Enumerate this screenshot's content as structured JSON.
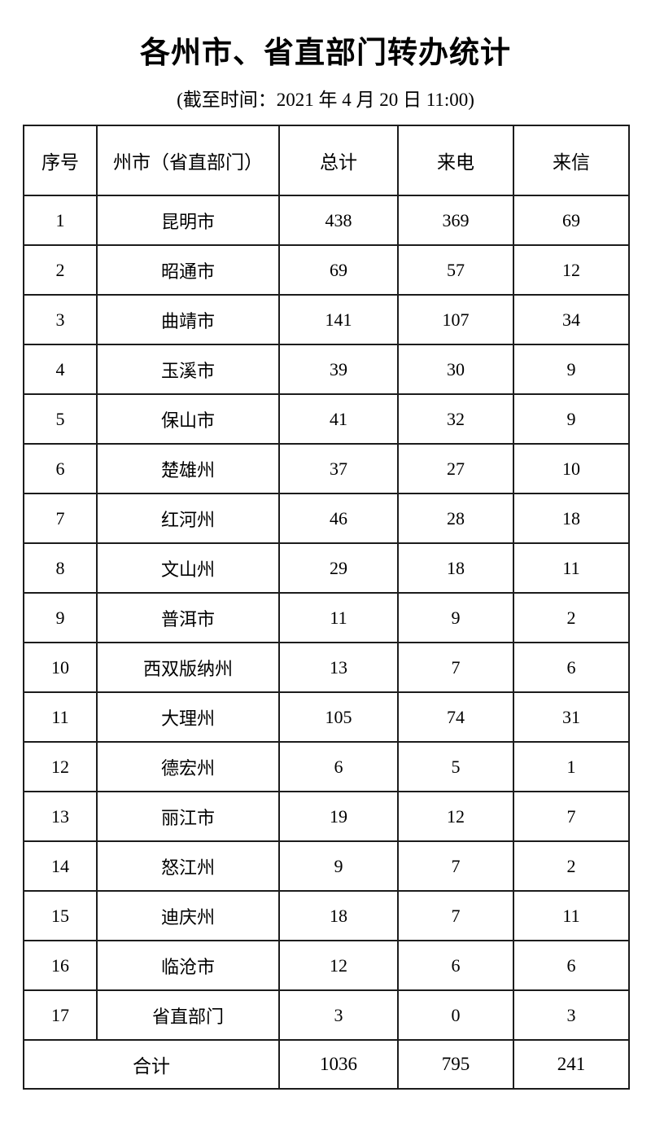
{
  "title": "各州市、省直部门转办统计",
  "subtitle": "(截至时间：2021 年 4 月 20 日 11:00)",
  "table": {
    "headers": [
      "序号",
      "州市（省直部门）",
      "总计",
      "来电",
      "来信"
    ],
    "rows": [
      {
        "no": 1,
        "name": "昆明市",
        "total": 438,
        "calls": 369,
        "letters": 69
      },
      {
        "no": 2,
        "name": "昭通市",
        "total": 69,
        "calls": 57,
        "letters": 12
      },
      {
        "no": 3,
        "name": "曲靖市",
        "total": 141,
        "calls": 107,
        "letters": 34
      },
      {
        "no": 4,
        "name": "玉溪市",
        "total": 39,
        "calls": 30,
        "letters": 9
      },
      {
        "no": 5,
        "name": "保山市",
        "total": 41,
        "calls": 32,
        "letters": 9
      },
      {
        "no": 6,
        "name": "楚雄州",
        "total": 37,
        "calls": 27,
        "letters": 10
      },
      {
        "no": 7,
        "name": "红河州",
        "total": 46,
        "calls": 28,
        "letters": 18
      },
      {
        "no": 8,
        "name": "文山州",
        "total": 29,
        "calls": 18,
        "letters": 11
      },
      {
        "no": 9,
        "name": "普洱市",
        "total": 11,
        "calls": 9,
        "letters": 2
      },
      {
        "no": 10,
        "name": "西双版纳州",
        "total": 13,
        "calls": 7,
        "letters": 6
      },
      {
        "no": 11,
        "name": "大理州",
        "total": 105,
        "calls": 74,
        "letters": 31
      },
      {
        "no": 12,
        "name": "德宏州",
        "total": 6,
        "calls": 5,
        "letters": 1
      },
      {
        "no": 13,
        "name": "丽江市",
        "total": 19,
        "calls": 12,
        "letters": 7
      },
      {
        "no": 14,
        "name": "怒江州",
        "total": 9,
        "calls": 7,
        "letters": 2
      },
      {
        "no": 15,
        "name": "迪庆州",
        "total": 18,
        "calls": 7,
        "letters": 11
      },
      {
        "no": 16,
        "name": "临沧市",
        "total": 12,
        "calls": 6,
        "letters": 6
      },
      {
        "no": 17,
        "name": "省直部门",
        "total": 3,
        "calls": 0,
        "letters": 3
      }
    ],
    "footer": {
      "label": "合计",
      "total": 1036,
      "calls": 795,
      "letters": 241
    }
  },
  "colors": {
    "background": "#ffffff",
    "text": "#000000",
    "border": "#1c1c1c"
  }
}
